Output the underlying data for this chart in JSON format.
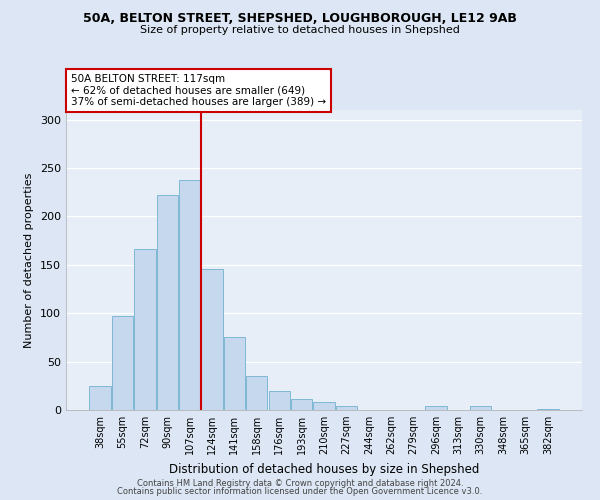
{
  "title1": "50A, BELTON STREET, SHEPSHED, LOUGHBOROUGH, LE12 9AB",
  "title2": "Size of property relative to detached houses in Shepshed",
  "xlabel": "Distribution of detached houses by size in Shepshed",
  "ylabel": "Number of detached properties",
  "bar_labels": [
    "38sqm",
    "55sqm",
    "72sqm",
    "90sqm",
    "107sqm",
    "124sqm",
    "141sqm",
    "158sqm",
    "176sqm",
    "193sqm",
    "210sqm",
    "227sqm",
    "244sqm",
    "262sqm",
    "279sqm",
    "296sqm",
    "313sqm",
    "330sqm",
    "348sqm",
    "365sqm",
    "382sqm"
  ],
  "bar_values": [
    25,
    97,
    166,
    222,
    238,
    146,
    75,
    35,
    20,
    11,
    8,
    4,
    0,
    0,
    0,
    4,
    0,
    4,
    0,
    0,
    1
  ],
  "bar_color": "#c5d8ed",
  "bar_edge_color": "#7eb8d4",
  "vline_x_index": 5,
  "vline_color": "#cc0000",
  "annotation_line1": "50A BELTON STREET: 117sqm",
  "annotation_line2": "← 62% of detached houses are smaller (649)",
  "annotation_line3": "37% of semi-detached houses are larger (389) →",
  "annotation_box_color": "#ffffff",
  "annotation_box_edge_color": "#cc0000",
  "ylim": [
    0,
    310
  ],
  "yticks": [
    0,
    50,
    100,
    150,
    200,
    250,
    300
  ],
  "footer1": "Contains HM Land Registry data © Crown copyright and database right 2024.",
  "footer2": "Contains public sector information licensed under the Open Government Licence v3.0.",
  "bg_color": "#dce6f4",
  "plot_bg_color": "#e8eef8"
}
